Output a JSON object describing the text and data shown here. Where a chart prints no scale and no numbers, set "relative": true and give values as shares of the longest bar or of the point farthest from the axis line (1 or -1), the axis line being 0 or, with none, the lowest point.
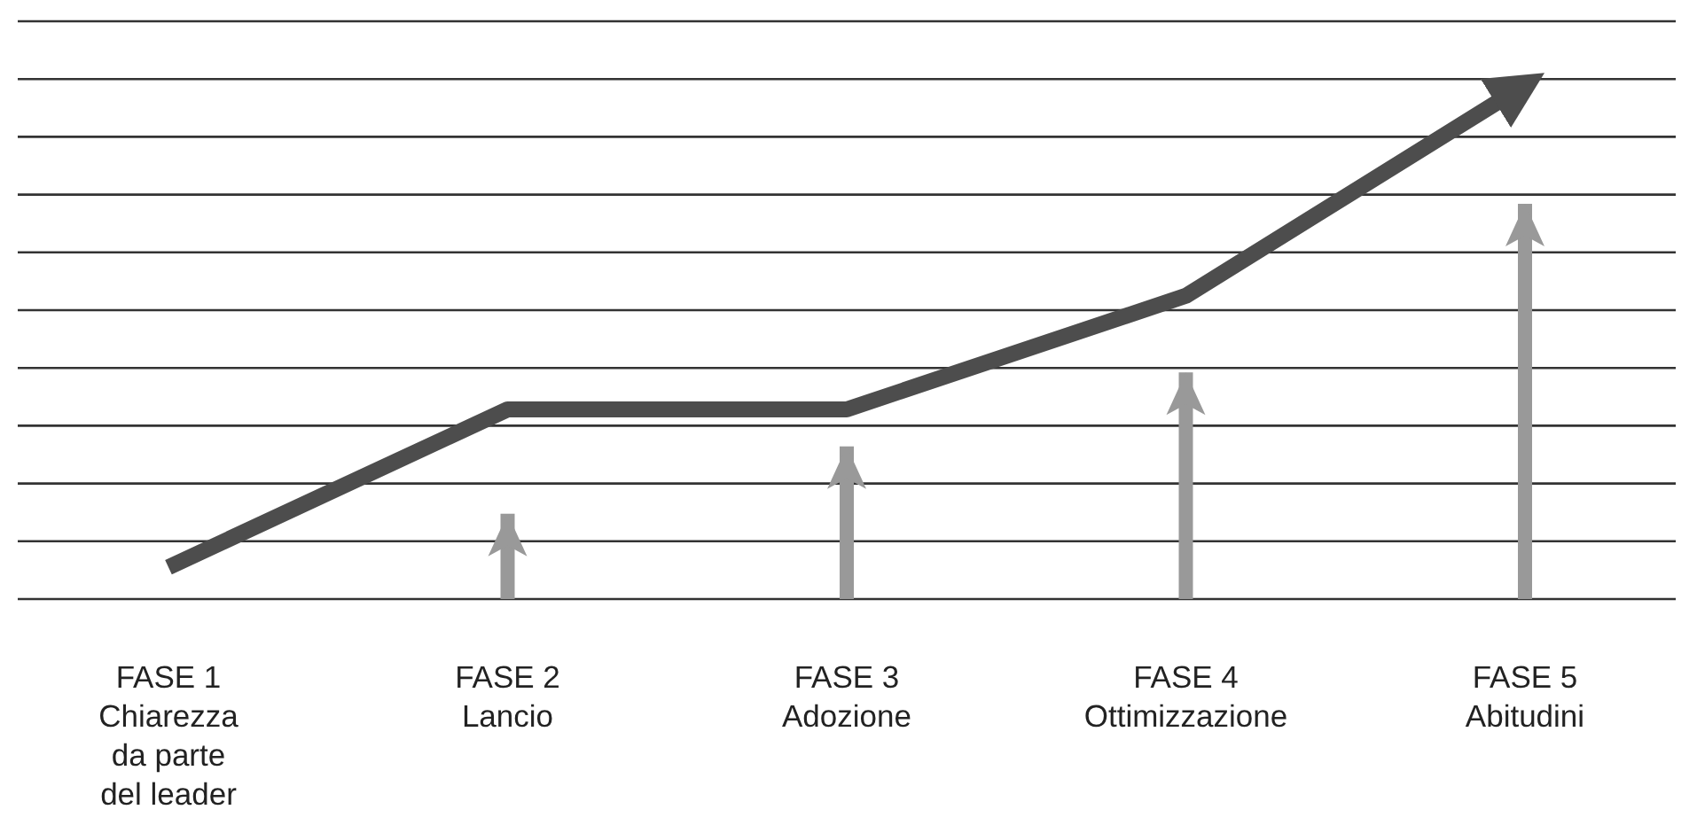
{
  "chart_data": {
    "type": "line",
    "relative": true,
    "grid": true,
    "marker": "none",
    "line_style": "solid",
    "categories": [
      "FASE 1\nChiarezza\nda parte\ndel leader",
      "FASE 2\nLancio",
      "FASE 3\nAdozione",
      "FASE 4\nOttimizzazione",
      "FASE 5\nAbitudini"
    ],
    "series": [
      {
        "type": "bar",
        "color": "#999999",
        "values": [
          null,
          0.166,
          0.297,
          0.441,
          0.769
        ]
      },
      {
        "color": "#4d4d4d",
        "values": [
          0.062,
          0.369,
          0.369,
          0.59,
          1
        ]
      }
    ]
  }
}
